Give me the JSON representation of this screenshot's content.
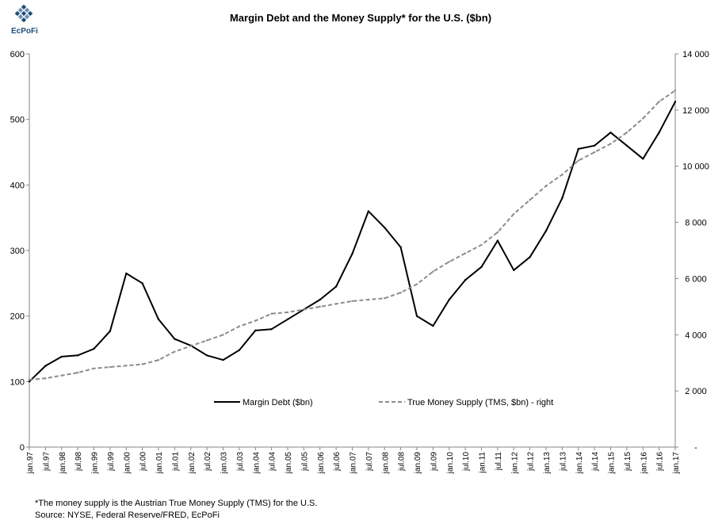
{
  "logo": {
    "text": "EcPoFi"
  },
  "footnotes": {
    "note": "*The money supply is the Austrian True Money Supply (TMS) for the U.S.",
    "source": "Source: NYSE, Federal Reserve/FRED, EcPoFi"
  },
  "chart_data": {
    "type": "line",
    "title": "Margin Debt and the Money Supply* for the U.S. ($bn)",
    "xlabel": "",
    "ylabel": "",
    "x": [
      "jan.97",
      "jul.97",
      "jan.98",
      "jul.98",
      "jan.99",
      "jul.99",
      "jan.00",
      "jul.00",
      "jan.01",
      "jul.01",
      "jan.02",
      "jul.02",
      "jan.03",
      "jul.03",
      "jan.04",
      "jul.04",
      "jan.05",
      "jul.05",
      "jan.06",
      "jul.06",
      "jan.07",
      "jul.07",
      "jan.08",
      "jul.08",
      "jan.09",
      "jul.09",
      "jan.10",
      "jul.10",
      "jan.11",
      "jul.11",
      "jan.12",
      "jul.12",
      "jan.13",
      "jul.13",
      "jan.14",
      "jul.14",
      "jan.15",
      "jul.15",
      "jan.16",
      "jul.16",
      "jan.17"
    ],
    "tick_labels": [
      "jan.97",
      "jul.97",
      "jan.98",
      "jul.98",
      "jan.99",
      "jul.99",
      "jan.00",
      "jul.00",
      "jan.01",
      "jul.01",
      "jan.02",
      "jul.02",
      "jan.03",
      "jul.03",
      "jan.04",
      "jul.04",
      "jan.05",
      "jul.05",
      "jan.06",
      "jul.06",
      "jan.07",
      "jul.07",
      "jan.08",
      "jul.08",
      "jan.09",
      "jul.09",
      "jan.10",
      "jul.10",
      "jan.11",
      "jul.11",
      "jan.12",
      "jul.12",
      "jan.13",
      "jul.13",
      "jan.14",
      "jul.14",
      "jan.15",
      "jul.15",
      "jan.16",
      "jul.16",
      "jan.17"
    ],
    "y_left": {
      "min": 0,
      "max": 600,
      "ticks": [
        0,
        100,
        200,
        300,
        400,
        500,
        600
      ],
      "tick_labels": [
        "0",
        "100",
        "200",
        "300",
        "400",
        "500",
        "600"
      ]
    },
    "y_right": {
      "min": 0,
      "max": 14000,
      "ticks": [
        0,
        2000,
        4000,
        6000,
        8000,
        10000,
        12000,
        14000
      ],
      "tick_labels": [
        "-",
        "2 000",
        "4 000",
        "6 000",
        "8 000",
        "10 000",
        "12 000",
        "14 000"
      ]
    },
    "grid": false,
    "legend_position": "inside-bottom-center",
    "series": [
      {
        "name": "Margin Debt ($bn)",
        "axis": "left",
        "style": "solid",
        "color": "#000000",
        "values": [
          100,
          124,
          138,
          140,
          150,
          177,
          265,
          250,
          195,
          165,
          155,
          140,
          133,
          148,
          178,
          180,
          195,
          210,
          225,
          245,
          295,
          360,
          335,
          305,
          200,
          185,
          225,
          255,
          275,
          315,
          270,
          290,
          330,
          380,
          455,
          460,
          480,
          460,
          440,
          480,
          527
        ]
      },
      {
        "name": "True Money Supply (TMS, $bn) - right",
        "axis": "right",
        "style": "dashed",
        "color": "#8c8c8c",
        "values": [
          2400,
          2450,
          2550,
          2650,
          2800,
          2850,
          2900,
          2950,
          3100,
          3400,
          3600,
          3800,
          4000,
          4300,
          4500,
          4750,
          4800,
          4900,
          5000,
          5100,
          5200,
          5250,
          5300,
          5500,
          5800,
          6250,
          6600,
          6900,
          7200,
          7650,
          8300,
          8800,
          9300,
          9700,
          10200,
          10500,
          10800,
          11200,
          11700,
          12300,
          12700
        ]
      }
    ]
  }
}
